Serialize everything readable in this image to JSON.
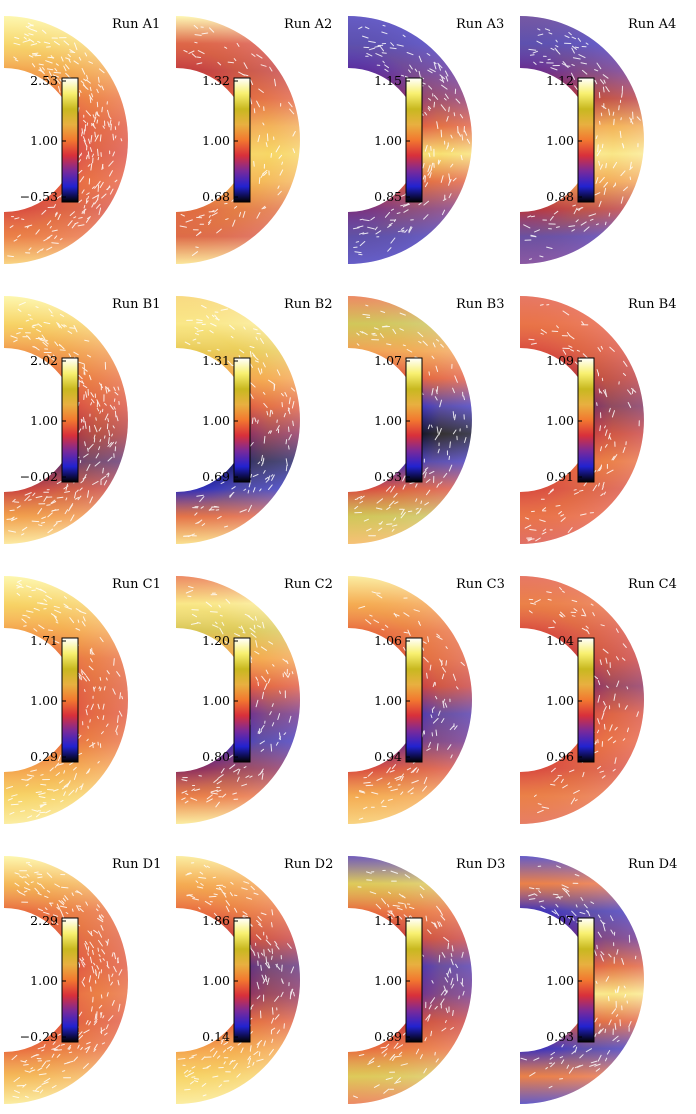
{
  "figure": {
    "rows": [
      {
        "panels": [
          {
            "title": "Run A1",
            "tick_max": "2.53",
            "tick_mid": "1.00",
            "tick_min": "−0.53",
            "stops": [
              "#fdf59a",
              "#f7d56a",
              "#f2a048",
              "#ea6e3a",
              "#e0523a",
              "#db4a40",
              "#e65a3a",
              "#d84a3a",
              "#e86a3a",
              "#f7c860"
            ],
            "streaks": 0.85
          },
          {
            "title": "Run A2",
            "tick_max": "1.32",
            "tick_mid": "1.00",
            "tick_min": "0.68",
            "stops": [
              "#fdf6a0",
              "#d84a3a",
              "#c23a3a",
              "#e05a3a",
              "#f2a850",
              "#f7d460",
              "#f4b050",
              "#e06a3a",
              "#d8503a",
              "#fae080"
            ],
            "streaks": 0.35
          },
          {
            "title": "Run A3",
            "tick_max": "1.15",
            "tick_mid": "1.00",
            "tick_min": "0.85",
            "stops": [
              "#3b2fb5",
              "#3a2fb8",
              "#5a2a9a",
              "#8a2f6a",
              "#e05a3a",
              "#f8e070",
              "#e05a3a",
              "#7a2f7a",
              "#3c2fb0",
              "#3a30b8"
            ],
            "streaks": 0.6
          },
          {
            "title": "Run A4",
            "tick_max": "1.12",
            "tick_mid": "1.00",
            "tick_min": "0.88",
            "stops": [
              "#502a8a",
              "#3a2fb8",
              "#6a2a88",
              "#b8353a",
              "#f2a850",
              "#fae88a",
              "#f2a050",
              "#b8353a",
              "#4a2fa8",
              "#6a2a88"
            ],
            "streaks": 0.5
          }
        ]
      },
      {
        "panels": [
          {
            "title": "Run B1",
            "tick_max": "2.02",
            "tick_mid": "1.00",
            "tick_min": "−0.02",
            "stops": [
              "#fdf59a",
              "#f7d060",
              "#f19848",
              "#e86a3a",
              "#d84a3a",
              "#a8323a",
              "#5a2a6a",
              "#c8403a",
              "#f09040",
              "#fbe488"
            ],
            "streaks": 0.8
          },
          {
            "title": "Run B2",
            "tick_max": "1.31",
            "tick_mid": "1.00",
            "tick_min": "0.69",
            "stops": [
              "#f7d060",
              "#fae888",
              "#e8c850",
              "#f4a048",
              "#e05a3a",
              "#8a2a5a",
              "#1a1a60",
              "#2a2ab8",
              "#e05a3a",
              "#f8d870"
            ],
            "streaks": 0.5
          },
          {
            "title": "Run B3",
            "tick_max": "1.07",
            "tick_mid": "1.00",
            "tick_min": "0.93",
            "stops": [
              "#e86a3a",
              "#c8c050",
              "#f2a050",
              "#e0523a",
              "#3a2fb8",
              "#0a0a20",
              "#3a2fb8",
              "#d84a3a",
              "#c8c050",
              "#f4b050"
            ],
            "streaks": 0.45
          },
          {
            "title": "Run B4",
            "tick_max": "1.09",
            "tick_mid": "1.00",
            "tick_min": "0.91",
            "stops": [
              "#e0523a",
              "#e65a3a",
              "#d84a3a",
              "#b8353a",
              "#7a2a5a",
              "#c83a3a",
              "#e86a3a",
              "#d84a3a",
              "#e65a3a",
              "#d8483a"
            ],
            "streaks": 0.4
          }
        ]
      },
      {
        "panels": [
          {
            "title": "Run C1",
            "tick_max": "1.71",
            "tick_mid": "1.00",
            "tick_min": "0.29",
            "stops": [
              "#fdf59a",
              "#f7d060",
              "#f4a048",
              "#e86a3a",
              "#e05a3a",
              "#e0523a",
              "#e86a3a",
              "#f4a048",
              "#f7d060",
              "#fae888"
            ],
            "streaks": 0.6
          },
          {
            "title": "Run C2",
            "tick_max": "1.20",
            "tick_mid": "1.00",
            "tick_min": "0.80",
            "stops": [
              "#e86a3a",
              "#fae888",
              "#d8c450",
              "#f4a048",
              "#e0523a",
              "#6a2a88",
              "#3a2fb8",
              "#8a2a5a",
              "#e86a3a",
              "#fae888"
            ],
            "streaks": 0.45
          },
          {
            "title": "Run C3",
            "tick_max": "1.06",
            "tick_mid": "1.00",
            "tick_min": "0.94",
            "stops": [
              "#fae888",
              "#f4a048",
              "#e86a3a",
              "#e05a3a",
              "#c83a3a",
              "#4a2fa8",
              "#6a2a88",
              "#d84a3a",
              "#f4a048",
              "#f7c860"
            ],
            "streaks": 0.4
          },
          {
            "title": "Run C4",
            "tick_max": "1.04",
            "tick_mid": "1.00",
            "tick_min": "0.96",
            "stops": [
              "#e0523a",
              "#e86a3a",
              "#d84a3a",
              "#c83a3a",
              "#8a2a5a",
              "#d84a3a",
              "#e65a3a",
              "#d8483a",
              "#e86a3a",
              "#e05a3a"
            ],
            "streaks": 0.35
          }
        ]
      },
      {
        "panels": [
          {
            "title": "Run D1",
            "tick_max": "2.29",
            "tick_mid": "1.00",
            "tick_min": "−0.29",
            "stops": [
              "#fdf59a",
              "#f4b050",
              "#e86a3a",
              "#e05a3a",
              "#e0523a",
              "#e86a3a",
              "#e0523a",
              "#e86a3a",
              "#f4b050",
              "#fae888"
            ],
            "streaks": 0.8
          },
          {
            "title": "Run D2",
            "tick_max": "1.86",
            "tick_mid": "1.00",
            "tick_min": "0.14",
            "stops": [
              "#fae888",
              "#f4a048",
              "#e86a3a",
              "#c83a3a",
              "#5a2a7a",
              "#8a2a5a",
              "#e05a3a",
              "#f4a048",
              "#f7d060",
              "#fae888"
            ],
            "streaks": 0.65
          },
          {
            "title": "Run D3",
            "tick_max": "1.11",
            "tick_mid": "1.00",
            "tick_min": "0.89",
            "stops": [
              "#4a2fa8",
              "#d8c450",
              "#e86a3a",
              "#c83a3a",
              "#4a2fa8",
              "#6a2a88",
              "#c83a3a",
              "#e86a3a",
              "#d8c450",
              "#e86a3a"
            ],
            "streaks": 0.45
          },
          {
            "title": "Run D4",
            "tick_max": "1.07",
            "tick_mid": "1.00",
            "tick_min": "0.93",
            "stops": [
              "#3a2fb8",
              "#e86a3a",
              "#3a2fb8",
              "#6a2a88",
              "#e05a3a",
              "#fae888",
              "#e05a3a",
              "#3a2fb8",
              "#e86a3a",
              "#3a2fb8"
            ],
            "streaks": 0.45
          }
        ]
      }
    ]
  },
  "colorbar": {
    "stops": [
      "#000000",
      "#2222d0",
      "#7a2a9a",
      "#d8303a",
      "#f27830",
      "#e8b040",
      "#c8b820",
      "#f8f070",
      "#ffffff"
    ]
  }
}
